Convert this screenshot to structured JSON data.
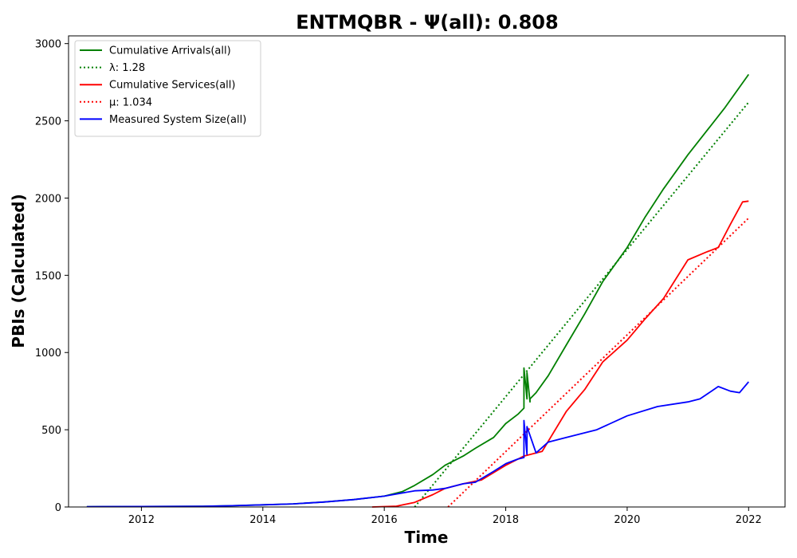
{
  "chart_data": {
    "type": "line",
    "title": "ENTMQBR -  Ψ(all): 0.808",
    "xlabel": "Time",
    "ylabel": "PBIs (Calculated)",
    "xlim": [
      2010.8,
      2022.6
    ],
    "ylim": [
      0,
      3050
    ],
    "xticks": [
      2012,
      2014,
      2016,
      2018,
      2020,
      2022
    ],
    "yticks": [
      0,
      500,
      1000,
      1500,
      2000,
      2500,
      3000
    ],
    "grid": false,
    "legend_position": "top-left",
    "series": [
      {
        "name": "Cumulative Arrivals(all)",
        "style": "solid",
        "color": "#008000",
        "x": [
          2011.1,
          2012.0,
          2013.0,
          2013.5,
          2014.0,
          2014.5,
          2015.0,
          2015.5,
          2016.0,
          2016.3,
          2016.5,
          2016.8,
          2017.0,
          2017.3,
          2017.5,
          2017.8,
          2018.0,
          2018.2,
          2018.3,
          2018.3,
          2018.35,
          2018.35,
          2018.4,
          2018.4,
          2018.5,
          2018.7,
          2019.0,
          2019.3,
          2019.6,
          2020.0,
          2020.3,
          2020.6,
          2021.0,
          2021.3,
          2021.6,
          2022.0
        ],
        "y": [
          2,
          3,
          4,
          8,
          14,
          20,
          32,
          48,
          70,
          100,
          140,
          210,
          270,
          330,
          380,
          450,
          540,
          600,
          640,
          900,
          700,
          870,
          680,
          700,
          740,
          850,
          1050,
          1250,
          1460,
          1680,
          1880,
          2060,
          2280,
          2430,
          2580,
          2800
        ]
      },
      {
        "name": "λ: 1.28",
        "style": "dotted",
        "color": "#008000",
        "x": [
          2016.5,
          2022.0
        ],
        "y": [
          0,
          2620
        ]
      },
      {
        "name": "Cumulative Services(all)",
        "style": "solid",
        "color": "#ff0000",
        "x": [
          2015.8,
          2016.2,
          2016.5,
          2016.8,
          2017.0,
          2017.3,
          2017.6,
          2018.0,
          2018.3,
          2018.6,
          2019.0,
          2019.3,
          2019.6,
          2020.0,
          2020.3,
          2020.6,
          2021.0,
          2021.3,
          2021.5,
          2021.7,
          2021.9,
          2022.0
        ],
        "y": [
          0,
          5,
          30,
          80,
          120,
          150,
          175,
          270,
          330,
          360,
          620,
          760,
          940,
          1080,
          1220,
          1350,
          1600,
          1650,
          1680,
          1830,
          1975,
          1980
        ]
      },
      {
        "name": "μ: 1.034",
        "style": "dotted",
        "color": "#ff0000",
        "x": [
          2017.05,
          2022.0
        ],
        "y": [
          0,
          1870
        ]
      },
      {
        "name": "Measured System Size(all)",
        "style": "solid",
        "color": "#0000ff",
        "x": [
          2011.1,
          2012.0,
          2013.0,
          2013.5,
          2014.0,
          2014.5,
          2015.0,
          2015.5,
          2016.0,
          2016.5,
          2016.8,
          2017.0,
          2017.3,
          2017.5,
          2017.8,
          2018.0,
          2018.2,
          2018.3,
          2018.3,
          2018.35,
          2018.35,
          2018.5,
          2018.7,
          2019.0,
          2019.5,
          2020.0,
          2020.5,
          2021.0,
          2021.2,
          2021.5,
          2021.7,
          2021.85,
          2022.0
        ],
        "y": [
          2,
          3,
          4,
          8,
          14,
          20,
          32,
          48,
          70,
          105,
          110,
          120,
          150,
          160,
          230,
          280,
          310,
          320,
          560,
          340,
          520,
          350,
          420,
          450,
          500,
          590,
          650,
          680,
          700,
          780,
          750,
          740,
          810
        ]
      }
    ]
  }
}
